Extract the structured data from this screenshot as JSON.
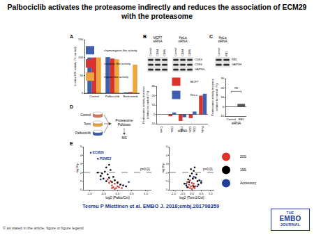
{
  "title": "Palbociclib activates the proteasome indirectly and reduces the association of ECM29 with the proteasome",
  "citation": "Teemu P Miettinen et al. EMBO J. 2018;embj.201798359",
  "copyright": "© as stated in the article, figure or figure legend",
  "logo": [
    "THE",
    "EMBO",
    "JOURNAL"
  ],
  "panel_labels": [
    "A",
    "B",
    "C",
    "D",
    "E"
  ],
  "blots": {
    "B": [
      {
        "title": "MCF7 siRNA",
        "lanes": [
          "Control",
          "CDK4",
          "CDK6"
        ],
        "rows": [
          "CDK4",
          "CDK6",
          "GAPDH"
        ]
      },
      {
        "title": "HeLa siRNA",
        "lanes": [
          "Control",
          "CDK4",
          "CDK6"
        ],
        "rows": [
          "CDK4",
          "CDK6",
          "GAPDH"
        ]
      }
    ],
    "C": [
      {
        "title": "HeLa siRNA",
        "lanes": [
          "Control",
          "RB1"
        ],
        "rows": [
          "RB1",
          "GAPDH"
        ]
      }
    ]
  },
  "diagram": {
    "inputs": [
      {
        "label": "Control",
        "color": "#e8734a"
      },
      {
        "label": "Torin",
        "color": "#f0a43c"
      },
      {
        "label": "Palbociclib",
        "color": "#3f5fae"
      }
    ],
    "steps": [
      "Proteasome Pulldown",
      "MS"
    ]
  },
  "chart_data": [
    {
      "type": "bar",
      "categories": [
        "Control",
        "Palbociclib",
        "Bortezomib"
      ],
      "series": [
        {
          "name": "chymotrypsin-like activity",
          "color": "#3f5fae",
          "values": [
            100,
            101,
            2
          ]
        },
        {
          "name": "caspase-like activity",
          "color": "#d8342c",
          "values": [
            100,
            97,
            3
          ]
        },
        {
          "name": "trypsin-like activity",
          "color": "#f0a43c",
          "values": [
            100,
            95,
            80
          ]
        }
      ],
      "ylabel": "In vitro 20S activity (% control)",
      "ylim": [
        0,
        150
      ],
      "yticks": [
        0,
        50,
        100,
        150
      ],
      "legend": "top-left"
    },
    {
      "type": "bar",
      "categories": [
        "Control",
        "CDK4",
        "CDK6",
        "CDK4& CDK6",
        "Palbociclib"
      ],
      "series": [
        {
          "name": "MCF7",
          "color": "#d8342c",
          "values": [
            0,
            -2,
            -7,
            -4,
            20
          ]
        },
        {
          "name": "HeLa",
          "color": "#3f5fae",
          "values": [
            0,
            2,
            -3,
            3,
            22
          ]
        }
      ],
      "xlabel": "siRNA",
      "ylabel": "Proteasome activity increase relative to control (%)",
      "ylim": [
        -10,
        30
      ],
      "yticks": [
        -10,
        0,
        10,
        20,
        30
      ],
      "legend": "top"
    },
    {
      "type": "bar",
      "categories": [
        "Control",
        "RB1"
      ],
      "values": [
        0,
        3
      ],
      "color": "#555555",
      "xlabel": "siRNA",
      "ylabel": "Proteasome activity increase relative to control (%)",
      "ylim": [
        -10,
        30
      ],
      "yticks": [
        -10,
        0,
        10,
        20,
        30
      ],
      "annotation": "ns"
    },
    {
      "type": "scatter",
      "xlabel": "log2 (Palbo/Ctrl)",
      "ylabel": "-log10 p",
      "xlim": [
        -1.2,
        1.2
      ],
      "xticks": [
        {
          "value": -1,
          "label": "-1.0"
        },
        -0.5,
        {
          "value": 0,
          "label": "0.0"
        },
        0.5,
        {
          "value": 1,
          "label": "1.0"
        }
      ],
      "ylim": [
        0,
        5
      ],
      "yticks": [
        0,
        1,
        2,
        3,
        4,
        5
      ],
      "threshold": {
        "value": 2,
        "label": "p=0.01",
        "line_style": "dashed"
      },
      "series": [
        {
          "name": "20S",
          "color": "#d8342c",
          "x": [
            -0.3,
            -0.25,
            -0.2,
            -0.15,
            -0.1,
            -0.05,
            0,
            0.05,
            0.1,
            -0.35,
            -0.2,
            0,
            0.15,
            -0.1
          ],
          "values": [
            0.8,
            1.0,
            0.5,
            0.3,
            0.7,
            0.2,
            0.4,
            0.3,
            0.6,
            1.2,
            0.2,
            0.9,
            0.2,
            0.1
          ]
        },
        {
          "name": "19S",
          "color": "#000000",
          "x": [
            -0.6,
            -0.5,
            -0.45,
            -0.4,
            -0.35,
            -0.3,
            -0.25,
            -0.2,
            -0.15,
            -0.1,
            0,
            0.1,
            0.2,
            -0.55,
            -0.4,
            -0.3,
            0.3,
            -0.7
          ],
          "values": [
            1.6,
            1.3,
            2.1,
            1.0,
            1.8,
            1.4,
            2.3,
            0.9,
            1.5,
            1.1,
            0.8,
            0.6,
            0.5,
            1.9,
            2.6,
            2.9,
            0.4,
            2.0
          ]
        },
        {
          "name": "Accessory",
          "color": "#1f3f99",
          "x": [
            -0.95,
            -0.7,
            -0.6,
            0.2,
            0.4
          ],
          "values": [
            4.3,
            3.6,
            1.2,
            0.5,
            0.9
          ],
          "point_labels": [
            "ECM29",
            "PSME3",
            null,
            null,
            null
          ]
        }
      ]
    },
    {
      "type": "scatter",
      "xlabel": "log2 (Torin1/Ctrl)",
      "ylabel": "-log10 p",
      "xlim": [
        -1.2,
        1.2
      ],
      "xticks": [
        {
          "value": -1,
          "label": "-1.0"
        },
        -0.5,
        {
          "value": 0,
          "label": "0.0"
        },
        0.5,
        {
          "value": 1,
          "label": "1.0"
        }
      ],
      "ylim": [
        0,
        5
      ],
      "yticks": [
        0,
        1,
        2,
        3,
        4,
        5
      ],
      "threshold": {
        "value": 2,
        "label": "p=0.01",
        "line_style": "dashed"
      },
      "legend": "right",
      "series": [
        {
          "name": "20S",
          "color": "#d8342c",
          "x": [
            -0.2,
            -0.15,
            -0.1,
            -0.05,
            0,
            0.05,
            0.1,
            0.15,
            -0.25,
            0.2,
            0,
            -0.1,
            0.05,
            0.1
          ],
          "values": [
            0.3,
            0.6,
            0.2,
            0.4,
            0.8,
            0.5,
            0.3,
            0.2,
            0.9,
            0.4,
            0.1,
            1.1,
            1.3,
            0.7
          ]
        },
        {
          "name": "19S",
          "color": "#000000",
          "x": [
            -0.3,
            -0.2,
            -0.1,
            0,
            0.1,
            0.2,
            0.3,
            -0.4,
            0.15,
            -0.15,
            0.05,
            0.25,
            0.35,
            -0.05,
            0.4,
            -0.25,
            0.1,
            0.5
          ],
          "values": [
            0.5,
            1.2,
            1.6,
            1.9,
            2.2,
            1.4,
            1.0,
            0.7,
            2.6,
            0.9,
            1.3,
            1.8,
            0.6,
            2.4,
            1.1,
            0.3,
            0.4,
            0.8
          ]
        },
        {
          "name": "Accessory",
          "color": "#1f3f99",
          "x": [
            -0.3,
            0.1,
            0.3,
            0.5
          ],
          "values": [
            0.7,
            1.5,
            0.4,
            1.0
          ]
        }
      ]
    }
  ]
}
